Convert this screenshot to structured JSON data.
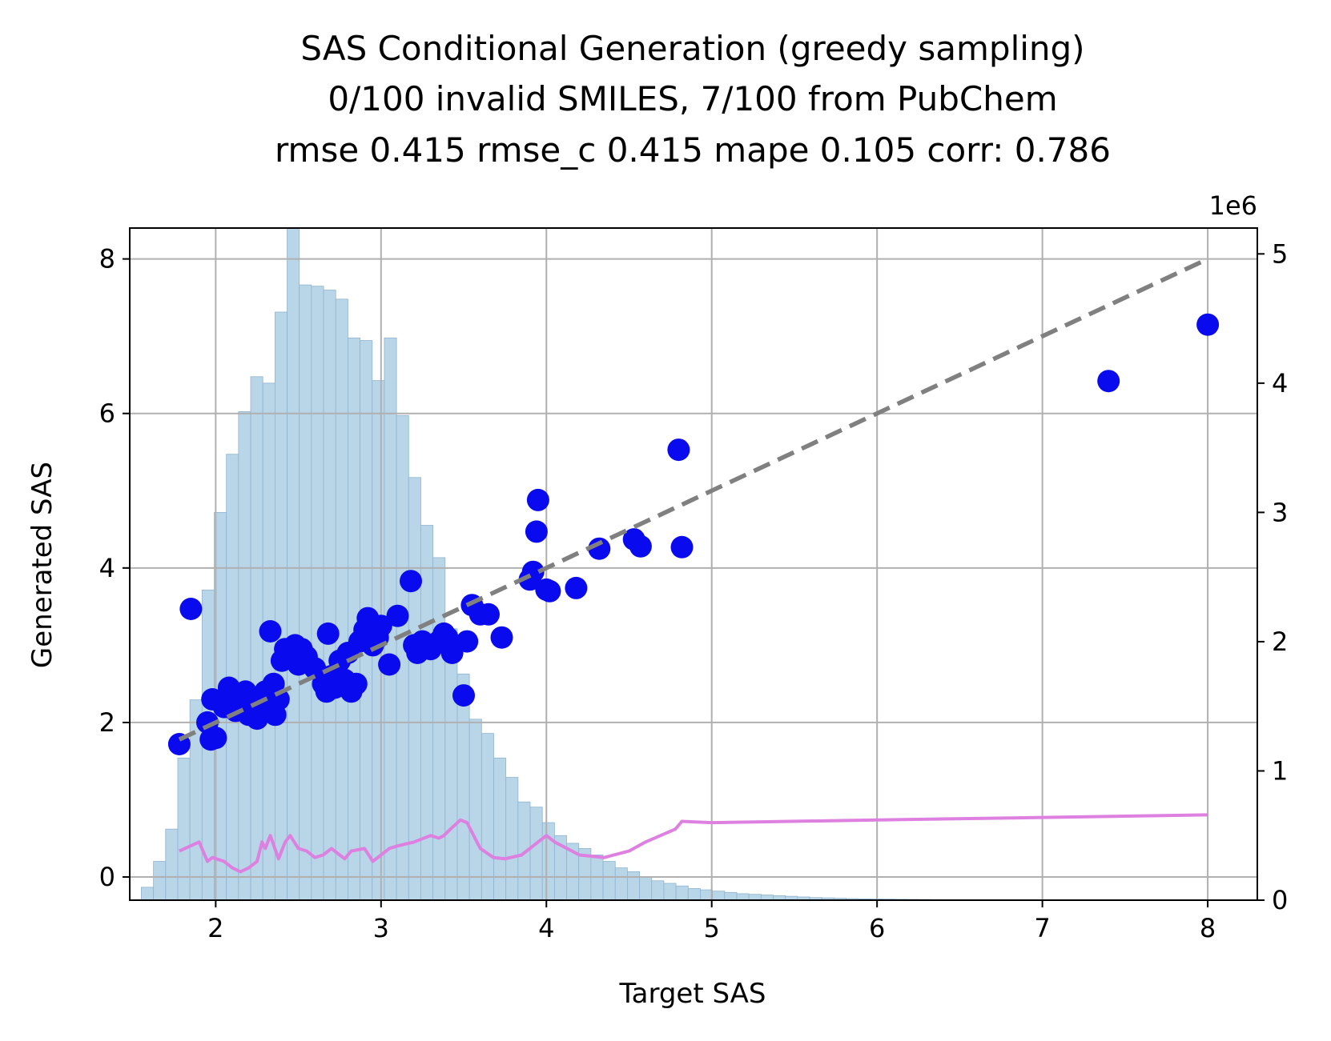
{
  "chart_data": {
    "type": "scatter",
    "title_lines": [
      "SAS Conditional Generation (greedy sampling)",
      "0/100 invalid SMILES, 7/100 from PubChem",
      "rmse 0.415 rmse_c 0.415 mape 0.105 corr: 0.786"
    ],
    "xlabel": "Target SAS",
    "ylabel": "Generated SAS",
    "right_axis_offset_label": "1e6",
    "xlim": [
      1.48,
      8.3
    ],
    "ylim": [
      -0.3,
      8.4
    ],
    "y2lim": [
      0,
      5.2
    ],
    "x_ticks": [
      2,
      3,
      4,
      5,
      6,
      7,
      8
    ],
    "y_ticks": [
      0,
      2,
      4,
      6,
      8
    ],
    "y2_ticks": [
      0,
      1,
      2,
      3,
      4,
      5
    ],
    "grid": true,
    "colors": {
      "points": "#0a0aef",
      "diagonal": "#808080",
      "histogram": "#b9d5e8",
      "histogram_edge": "#8fb4d0",
      "density_line": "#dd80e0"
    },
    "diagonal": {
      "x": [
        1.78,
        8.0
      ],
      "y": [
        1.78,
        8.0
      ]
    },
    "histogram": {
      "bin_start": 1.55,
      "bin_width": 0.0735,
      "counts_millions": [
        0.1,
        0.3,
        0.55,
        1.1,
        1.55,
        2.4,
        3.0,
        3.45,
        3.78,
        4.05,
        4.0,
        4.55,
        5.22,
        4.76,
        4.75,
        4.72,
        4.65,
        4.35,
        4.33,
        4.02,
        4.35,
        3.75,
        3.27,
        2.9,
        2.65,
        2.1,
        1.75,
        1.4,
        1.29,
        1.1,
        0.95,
        0.76,
        0.72,
        0.6,
        0.5,
        0.44,
        0.4,
        0.35,
        0.3,
        0.25,
        0.22,
        0.18,
        0.15,
        0.13,
        0.11,
        0.09,
        0.08,
        0.07,
        0.06,
        0.05,
        0.045,
        0.04,
        0.035,
        0.03,
        0.025,
        0.02,
        0.018,
        0.015,
        0.012,
        0.01,
        0.009,
        0.008,
        0.007,
        0.006,
        0.005,
        0.004,
        0.0035,
        0.003,
        0.0025,
        0.002,
        0.0018,
        0.0015,
        0.0012,
        0.001,
        0.0008,
        0.0006,
        0.0005,
        0.0004,
        0.0003,
        0.0002,
        0.0002,
        0.0001,
        0.0001,
        0.0001,
        0.0001,
        0.0001,
        0.0001,
        0.0001,
        0.0001,
        0.0001
      ]
    },
    "density_line": {
      "x": [
        1.78,
        1.9,
        1.95,
        1.98,
        2.05,
        2.1,
        2.15,
        2.2,
        2.25,
        2.28,
        2.3,
        2.33,
        2.38,
        2.42,
        2.45,
        2.5,
        2.55,
        2.6,
        2.65,
        2.7,
        2.75,
        2.78,
        2.82,
        2.9,
        2.95,
        3.0,
        3.05,
        3.1,
        3.2,
        3.3,
        3.35,
        3.38,
        3.42,
        3.48,
        3.52,
        3.6,
        3.68,
        3.75,
        3.85,
        3.92,
        3.95,
        4.0,
        4.05,
        4.2,
        4.35,
        4.5,
        4.6,
        4.78,
        4.82,
        5.0,
        6.0,
        7.0,
        7.5,
        8.0
      ],
      "y": [
        0.38,
        0.45,
        0.3,
        0.33,
        0.3,
        0.25,
        0.22,
        0.25,
        0.3,
        0.45,
        0.4,
        0.5,
        0.32,
        0.45,
        0.5,
        0.4,
        0.38,
        0.33,
        0.35,
        0.4,
        0.35,
        0.32,
        0.38,
        0.4,
        0.3,
        0.35,
        0.4,
        0.42,
        0.45,
        0.5,
        0.48,
        0.5,
        0.55,
        0.62,
        0.6,
        0.4,
        0.33,
        0.32,
        0.35,
        0.42,
        0.45,
        0.5,
        0.45,
        0.35,
        0.33,
        0.38,
        0.45,
        0.55,
        0.61,
        0.6,
        0.62,
        0.64,
        0.65,
        0.66
      ]
    },
    "points": [
      {
        "x": 1.78,
        "y": 1.72
      },
      {
        "x": 1.85,
        "y": 3.47
      },
      {
        "x": 1.95,
        "y": 2.0
      },
      {
        "x": 1.97,
        "y": 1.78
      },
      {
        "x": 2.0,
        "y": 1.8
      },
      {
        "x": 1.98,
        "y": 2.3
      },
      {
        "x": 2.05,
        "y": 2.2
      },
      {
        "x": 2.08,
        "y": 2.45
      },
      {
        "x": 2.1,
        "y": 2.35
      },
      {
        "x": 2.12,
        "y": 2.15
      },
      {
        "x": 2.15,
        "y": 2.28
      },
      {
        "x": 2.18,
        "y": 2.4
      },
      {
        "x": 2.2,
        "y": 2.1
      },
      {
        "x": 2.22,
        "y": 2.3
      },
      {
        "x": 2.25,
        "y": 2.05
      },
      {
        "x": 2.28,
        "y": 2.2
      },
      {
        "x": 2.3,
        "y": 2.4
      },
      {
        "x": 2.32,
        "y": 2.3
      },
      {
        "x": 2.35,
        "y": 2.5
      },
      {
        "x": 2.36,
        "y": 2.1
      },
      {
        "x": 2.38,
        "y": 2.3
      },
      {
        "x": 2.33,
        "y": 3.18
      },
      {
        "x": 2.4,
        "y": 2.8
      },
      {
        "x": 2.42,
        "y": 2.95
      },
      {
        "x": 2.45,
        "y": 2.85
      },
      {
        "x": 2.48,
        "y": 3.0
      },
      {
        "x": 2.5,
        "y": 2.75
      },
      {
        "x": 2.52,
        "y": 2.95
      },
      {
        "x": 2.55,
        "y": 2.85
      },
      {
        "x": 2.6,
        "y": 2.7
      },
      {
        "x": 2.65,
        "y": 2.5
      },
      {
        "x": 2.67,
        "y": 2.4
      },
      {
        "x": 2.68,
        "y": 3.15
      },
      {
        "x": 2.7,
        "y": 2.6
      },
      {
        "x": 2.72,
        "y": 2.45
      },
      {
        "x": 2.75,
        "y": 2.8
      },
      {
        "x": 2.78,
        "y": 2.55
      },
      {
        "x": 2.8,
        "y": 2.9
      },
      {
        "x": 2.82,
        "y": 2.4
      },
      {
        "x": 2.85,
        "y": 2.5
      },
      {
        "x": 2.87,
        "y": 3.05
      },
      {
        "x": 2.9,
        "y": 3.2
      },
      {
        "x": 2.92,
        "y": 3.35
      },
      {
        "x": 2.95,
        "y": 3.0
      },
      {
        "x": 2.98,
        "y": 3.1
      },
      {
        "x": 3.0,
        "y": 3.25
      },
      {
        "x": 3.05,
        "y": 2.75
      },
      {
        "x": 3.1,
        "y": 3.38
      },
      {
        "x": 3.18,
        "y": 3.83
      },
      {
        "x": 3.2,
        "y": 3.0
      },
      {
        "x": 3.22,
        "y": 2.9
      },
      {
        "x": 3.25,
        "y": 3.05
      },
      {
        "x": 3.28,
        "y": 3.0
      },
      {
        "x": 3.3,
        "y": 2.95
      },
      {
        "x": 3.35,
        "y": 3.05
      },
      {
        "x": 3.38,
        "y": 3.15
      },
      {
        "x": 3.4,
        "y": 3.1
      },
      {
        "x": 3.43,
        "y": 2.9
      },
      {
        "x": 3.5,
        "y": 2.35
      },
      {
        "x": 3.52,
        "y": 3.05
      },
      {
        "x": 3.55,
        "y": 3.52
      },
      {
        "x": 3.6,
        "y": 3.4
      },
      {
        "x": 3.65,
        "y": 3.4
      },
      {
        "x": 3.73,
        "y": 3.1
      },
      {
        "x": 3.9,
        "y": 3.85
      },
      {
        "x": 3.92,
        "y": 3.95
      },
      {
        "x": 3.94,
        "y": 4.47
      },
      {
        "x": 3.95,
        "y": 4.88
      },
      {
        "x": 4.0,
        "y": 3.72
      },
      {
        "x": 4.02,
        "y": 3.7
      },
      {
        "x": 4.18,
        "y": 3.74
      },
      {
        "x": 4.32,
        "y": 4.25
      },
      {
        "x": 4.53,
        "y": 4.37
      },
      {
        "x": 4.57,
        "y": 4.28
      },
      {
        "x": 4.8,
        "y": 5.53
      },
      {
        "x": 4.82,
        "y": 4.27
      },
      {
        "x": 7.4,
        "y": 6.42
      },
      {
        "x": 8.0,
        "y": 7.15
      }
    ]
  }
}
